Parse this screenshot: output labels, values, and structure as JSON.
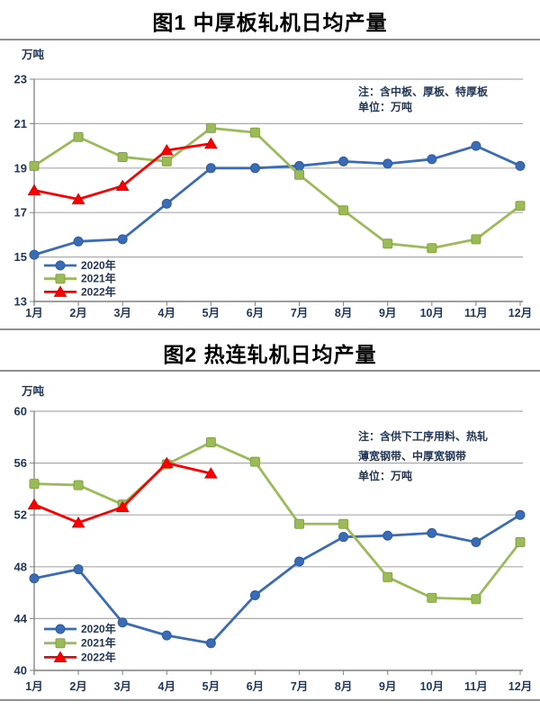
{
  "page": {
    "background": "#ffffff"
  },
  "colors": {
    "title_text": "#000000",
    "separator_line": "#8f8f8f",
    "grid_line": "#aaaaaa",
    "axis_line": "#7f7f7f",
    "axis_text": "#1f3558",
    "note_text": "#1f3558",
    "legend_text": "#1f3558"
  },
  "figures": [
    {
      "title": "图1 中厚板轧机日均产量"
    },
    {
      "title": "图2 热连轧机日均产量"
    }
  ],
  "chart_data": [
    {
      "type": "line",
      "title": "图1 中厚板轧机日均产量",
      "ylabel": "万吨",
      "xlabel": "",
      "categories": [
        "1月",
        "2月",
        "3月",
        "4月",
        "5月",
        "6月",
        "7月",
        "8月",
        "9月",
        "10月",
        "11月",
        "12月"
      ],
      "ylim": [
        13,
        23
      ],
      "yticks": [
        13,
        15,
        17,
        19,
        21,
        23
      ],
      "grid": true,
      "legend_position": "inside-bottom-left",
      "notes": [
        "注：含中板、厚板、特厚板",
        "单位：万吨"
      ],
      "series": [
        {
          "name": "2020年",
          "marker": "circle",
          "color": "#3a6bb5",
          "edge": "#2f5b9e",
          "values": [
            15.1,
            15.7,
            15.8,
            17.4,
            19.0,
            19.0,
            19.1,
            19.3,
            19.2,
            19.4,
            20.0,
            19.1
          ]
        },
        {
          "name": "2021年",
          "marker": "square",
          "color": "#9bbb59",
          "edge": "#84a33e",
          "values": [
            19.1,
            20.4,
            19.5,
            19.3,
            20.8,
            20.6,
            18.7,
            17.1,
            15.6,
            15.4,
            15.8,
            17.3
          ]
        },
        {
          "name": "2022年",
          "marker": "triangle",
          "color": "#fb0000",
          "edge": "#e00000",
          "values": [
            18.0,
            17.6,
            18.2,
            19.8,
            20.1
          ]
        }
      ]
    },
    {
      "type": "line",
      "title": "图2 热连轧机日均产量",
      "ylabel": "万吨",
      "xlabel": "",
      "categories": [
        "1月",
        "2月",
        "3月",
        "4月",
        "5月",
        "6月",
        "7月",
        "8月",
        "9月",
        "10月",
        "11月",
        "12月"
      ],
      "ylim": [
        40,
        60
      ],
      "yticks": [
        40,
        44,
        48,
        52,
        56,
        60
      ],
      "grid": true,
      "legend_position": "inside-bottom-left",
      "notes": [
        "注：含供下工序用料、热轧",
        "薄宽钢带、中厚宽钢带",
        "单位：万吨"
      ],
      "series": [
        {
          "name": "2020年",
          "marker": "circle",
          "color": "#3a6bb5",
          "edge": "#2f5b9e",
          "values": [
            47.1,
            47.8,
            43.7,
            42.7,
            42.1,
            45.8,
            48.4,
            50.3,
            50.4,
            50.6,
            49.9,
            52.0
          ]
        },
        {
          "name": "2021年",
          "marker": "square",
          "color": "#9bbb59",
          "edge": "#84a33e",
          "values": [
            54.4,
            54.3,
            52.8,
            55.9,
            57.6,
            56.1,
            51.3,
            51.3,
            47.2,
            45.6,
            45.5,
            49.9
          ]
        },
        {
          "name": "2022年",
          "marker": "triangle",
          "color": "#fb0000",
          "edge": "#e00000",
          "values": [
            52.8,
            51.4,
            52.6,
            56.0,
            55.2
          ]
        }
      ]
    }
  ]
}
